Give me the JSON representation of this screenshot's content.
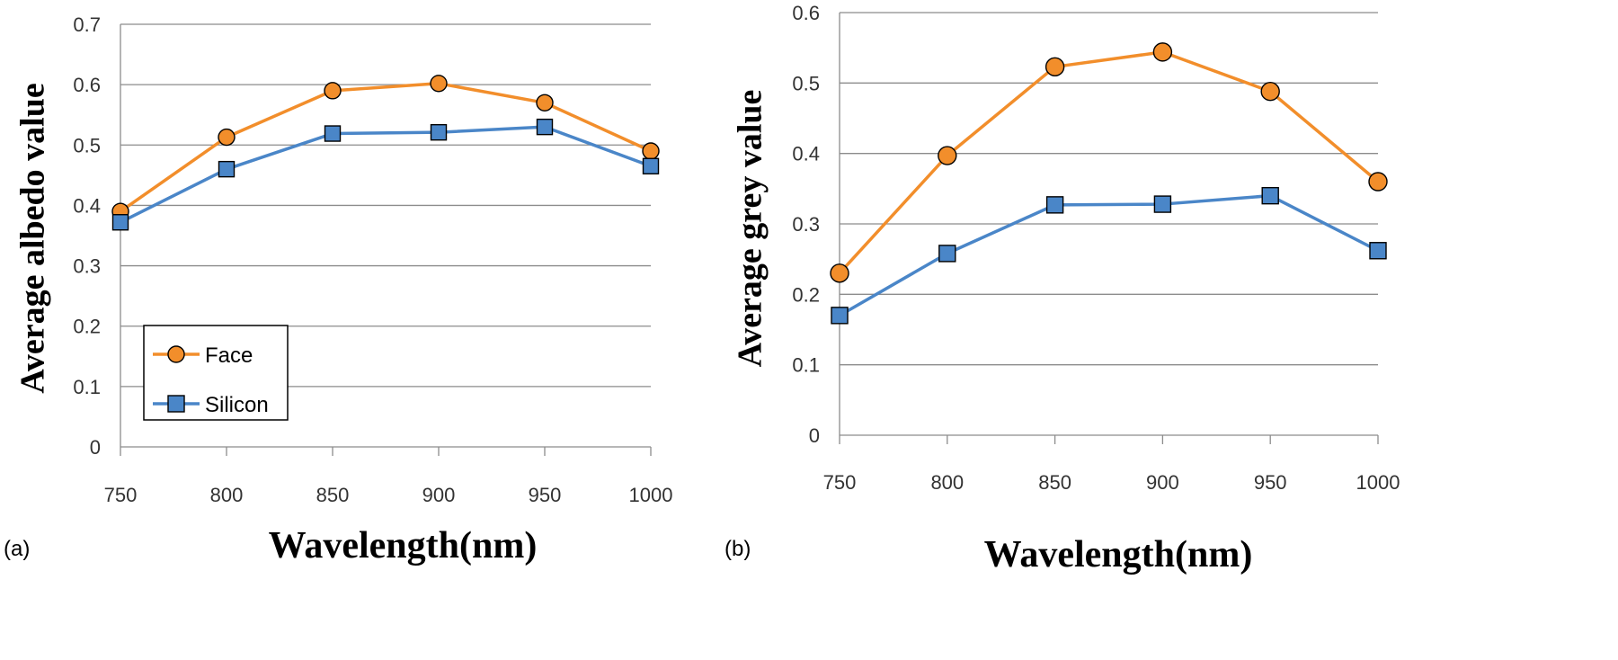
{
  "chart_data": [
    {
      "panel_label": "(a)",
      "type": "line",
      "x": [
        750,
        800,
        850,
        900,
        950,
        1000
      ],
      "xlabel": "Wavelength(nm)",
      "ylabel": "Average albedo value",
      "ylim": [
        0,
        0.7
      ],
      "yticks": [
        "0",
        "0.1",
        "0.2",
        "0.3",
        "0.4",
        "0.5",
        "0.6",
        "0.7"
      ],
      "xticks": [
        "750",
        "800",
        "850",
        "900",
        "950",
        "1000"
      ],
      "grid": "horizontal",
      "legend": "inside-lower-left",
      "series": [
        {
          "name": "Face",
          "color": "#f28e2b",
          "marker": "circle",
          "values": [
            0.39,
            0.513,
            0.59,
            0.602,
            0.57,
            0.49
          ]
        },
        {
          "name": "Silicon",
          "color": "#4a86c8",
          "marker": "square",
          "values": [
            0.372,
            0.46,
            0.519,
            0.521,
            0.53,
            0.465
          ]
        }
      ]
    },
    {
      "panel_label": "(b)",
      "type": "line",
      "x": [
        750,
        800,
        850,
        900,
        950,
        1000
      ],
      "xlabel": "Wavelength(nm)",
      "ylabel": "Average grey value",
      "ylim": [
        0,
        0.6
      ],
      "yticks": [
        "0",
        "0.1",
        "0.2",
        "0.3",
        "0.4",
        "0.5",
        "0.6"
      ],
      "xticks": [
        "750",
        "800",
        "850",
        "900",
        "950",
        "1000"
      ],
      "grid": "horizontal",
      "series": [
        {
          "color": "#f28e2b",
          "marker": "circle",
          "values": [
            0.23,
            0.397,
            0.523,
            0.544,
            0.488,
            0.36
          ]
        },
        {
          "color": "#4a86c8",
          "marker": "square",
          "values": [
            0.17,
            0.258,
            0.327,
            0.328,
            0.34,
            0.262
          ]
        }
      ]
    }
  ]
}
